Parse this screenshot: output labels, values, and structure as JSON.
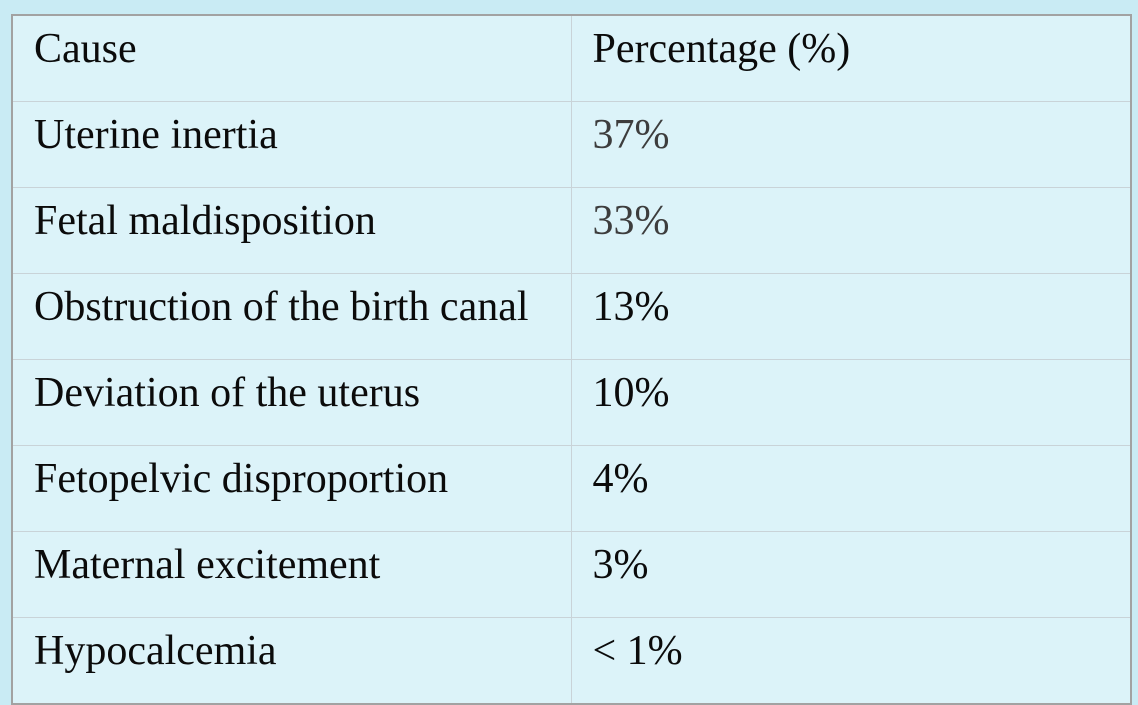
{
  "page": {
    "background_color": "#c9ebf4"
  },
  "table": {
    "header": {
      "cause": "Cause",
      "percentage": "Percentage (%)"
    },
    "rows": [
      {
        "cause": "Uterine inertia",
        "value": "37%",
        "value_style": "color:#3d3d3d"
      },
      {
        "cause": "Fetal maldisposition",
        "value": "33%",
        "value_style": "color:#3d3d3d"
      },
      {
        "cause": "Obstruction of the birth canal",
        "value": "13%",
        "value_style": "color:#0b0b0b"
      },
      {
        "cause": "Deviation of the uterus",
        "value": "10%",
        "value_style": "color:#0b0b0b"
      },
      {
        "cause": "Fetopelvic disproportion",
        "value": "4%",
        "value_style": "color:#0b0b0b"
      },
      {
        "cause": "Maternal excitement",
        "value": "3%",
        "value_style": "color:#0b0b0b"
      },
      {
        "cause": "Hypocalcemia",
        "value": "< 1%",
        "value_style": "color:#0b0b0b"
      }
    ],
    "colors": {
      "cell_background": "#dcf3f9",
      "outer_border": "#a2a2a2",
      "inner_border": "#c9d3d8",
      "text": "#0b0b0b",
      "muted_value": "#3d3d3d"
    }
  },
  "chart_data": {
    "type": "table",
    "title": "",
    "columns": [
      "Cause",
      "Percentage (%)"
    ],
    "rows": [
      [
        "Uterine inertia",
        "37%"
      ],
      [
        "Fetal maldisposition",
        "33%"
      ],
      [
        "Obstruction of the birth canal",
        "13%"
      ],
      [
        "Deviation of the uterus",
        "10%"
      ],
      [
        "Fetopelvic disproportion",
        "4%"
      ],
      [
        "Maternal excitement",
        "3%"
      ],
      [
        "Hypocalcemia",
        "< 1%"
      ]
    ],
    "values_percent": [
      37,
      33,
      13,
      10,
      4,
      3,
      "<1"
    ]
  }
}
